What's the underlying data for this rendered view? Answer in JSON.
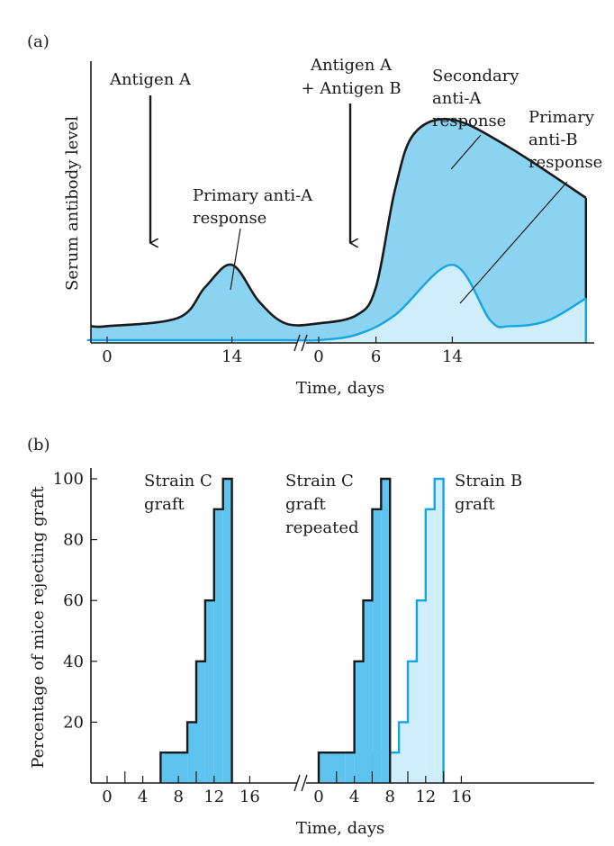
{
  "colors": {
    "fill_dark": "#8cd3f2",
    "fill_light": "#cfedfb",
    "fill_step": "#5fc3ef",
    "line_blue": "#14a6e2",
    "line_black": "#1a1a1a"
  },
  "chart_data": [
    {
      "type": "area",
      "panel_label": "(a)",
      "xlabel": "Time, days",
      "ylabel": "Serum antibody level",
      "x_ticks_segment1": [
        "0",
        "14"
      ],
      "x_ticks_segment2": [
        "0",
        "6",
        "14"
      ],
      "axis_break": true,
      "arrows": [
        {
          "label_lines": [
            "Antigen A"
          ],
          "segment": 1,
          "day": 5
        },
        {
          "label_lines": [
            "Antigen A",
            "+ Antigen B"
          ],
          "segment": 2,
          "day": 3.5
        }
      ],
      "annotations": [
        {
          "label_lines": [
            "Primary anti-A",
            "response"
          ],
          "points_to": "peak at day 14 (segment 1)"
        },
        {
          "label_lines": [
            "Secondary",
            "anti-A",
            "response"
          ],
          "points_to": "large curve (segment 2)"
        },
        {
          "label_lines": [
            "Primary",
            "anti-B",
            "response"
          ],
          "points_to": "light curve (segment 2)"
        }
      ],
      "series": [
        {
          "style": "black outline, dark fill",
          "x_segment1": [
            0,
            8,
            11,
            14,
            17,
            20
          ],
          "y_segment1": [
            0.06,
            0.09,
            0.2,
            0.28,
            0.15,
            0.07
          ],
          "x_segment2": [
            0,
            4,
            6,
            8,
            10,
            14,
            20,
            28
          ],
          "y_segment2": [
            0.07,
            0.1,
            0.2,
            0.55,
            0.75,
            0.8,
            0.7,
            0.52
          ]
        },
        {
          "style": "blue outline, light fill",
          "x_segment1": [
            0,
            20
          ],
          "y_segment1": [
            0.01,
            0.01
          ],
          "x_segment2": [
            0,
            4,
            8,
            14,
            18,
            20,
            24,
            28
          ],
          "y_segment2": [
            0.01,
            0.03,
            0.1,
            0.28,
            0.08,
            0.06,
            0.08,
            0.16
          ]
        }
      ]
    },
    {
      "type": "bar",
      "subtype": "cumulative step histogram",
      "panel_label": "(b)",
      "xlabel": "Time, days",
      "ylabel": "Percentage of mice rejecting graft",
      "yticks": [
        "20",
        "40",
        "60",
        "80",
        "100"
      ],
      "ylim": [
        0,
        100
      ],
      "x_ticks_segment1": [
        "0",
        "4",
        "8",
        "12",
        "16"
      ],
      "x_ticks_segment2": [
        "0",
        "4",
        "8",
        "12",
        "16"
      ],
      "axis_break": true,
      "series": [
        {
          "name_lines": [
            "Strain C",
            "graft"
          ],
          "segment": 1,
          "style": "dark",
          "days": [
            6,
            9,
            10,
            11,
            12,
            13,
            14
          ],
          "values": [
            10,
            20,
            40,
            60,
            90,
            100,
            100
          ]
        },
        {
          "name_lines": [
            "Strain C",
            "graft",
            "repeated"
          ],
          "segment": 2,
          "style": "dark",
          "days": [
            0,
            3,
            4,
            5,
            6,
            7,
            8
          ],
          "values": [
            10,
            10,
            40,
            60,
            90,
            100,
            100
          ]
        },
        {
          "name_lines": [
            "Strain B",
            "graft"
          ],
          "segment": 2,
          "style": "light",
          "days": [
            6,
            9,
            10,
            11,
            12,
            13,
            14
          ],
          "values": [
            10,
            20,
            40,
            60,
            90,
            100,
            100
          ]
        }
      ]
    }
  ]
}
